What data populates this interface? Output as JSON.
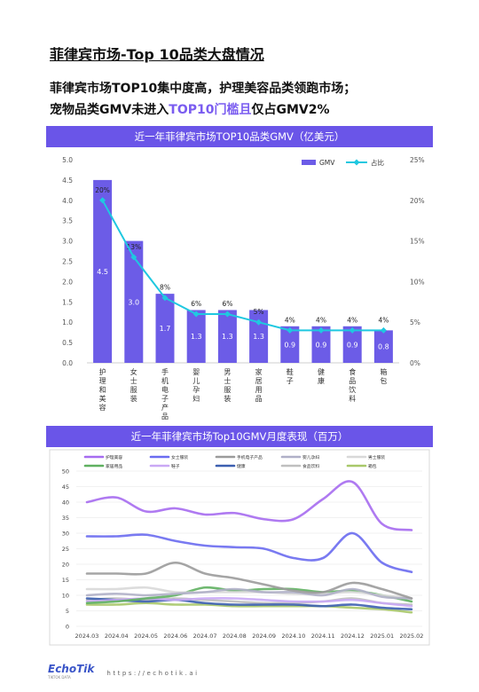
{
  "page": {
    "title": "菲律宾市场-Top 10品类大盘情况",
    "subtitle_line1": "菲律宾市场TOP10集中度高，护理美容品类领跑市场；",
    "subtitle_line2_a": "宠物品类GMV未进入",
    "subtitle_line2_b": "TOP10门槛且",
    "subtitle_line2_c": "仅占GMV2%"
  },
  "colors": {
    "accent": "#6a55e8",
    "bar": "#6c5ce7",
    "line": "#1fc8e0"
  },
  "chart_data": [
    {
      "type": "bar",
      "title": "近一年菲律宾市场TOP10品类GMV（亿美元）",
      "categories": [
        "护理和美容",
        "女士服装",
        "手机电子产品",
        "婴儿孕妇",
        "男士服装",
        "家居用品",
        "鞋子",
        "健康",
        "食品饮料",
        "箱包"
      ],
      "series": [
        {
          "name": "GMV",
          "axis": "left",
          "values": [
            4.5,
            3.0,
            1.7,
            1.3,
            1.3,
            1.3,
            0.9,
            0.9,
            0.9,
            0.8
          ],
          "labels": [
            "4.5",
            "3.0",
            "1.7",
            "1.3",
            "1.3",
            "1.3",
            "0.9",
            "0.9",
            "0.9",
            "0.8"
          ]
        },
        {
          "name": "占比",
          "axis": "right",
          "type": "line",
          "values": [
            20,
            13,
            8,
            6,
            6,
            5,
            4,
            4,
            4,
            4
          ],
          "labels": [
            "20%",
            "13%",
            "8%",
            "6%",
            "6%",
            "5%",
            "4%",
            "4%",
            "4%",
            "4%"
          ]
        }
      ],
      "ylim": [
        0,
        5
      ],
      "y_ticks": [
        "0.0",
        "0.5",
        "1.0",
        "1.5",
        "2.0",
        "2.5",
        "3.0",
        "3.5",
        "4.0",
        "4.5",
        "5.0"
      ],
      "y2lim": [
        0,
        25
      ],
      "y2_ticks": [
        "0%",
        "5%",
        "10%",
        "15%",
        "20%",
        "25%"
      ],
      "legend": "top-right",
      "grid": false
    },
    {
      "type": "line",
      "title": "近一年菲律宾市场Top10GMV月度表现（百万）",
      "x": [
        "2024.03",
        "2024.04",
        "2024.05",
        "2024.06",
        "2024.07",
        "2024.08",
        "2024.09",
        "2024.10",
        "2024.11",
        "2024.12",
        "2025.01",
        "2025.02"
      ],
      "ylim": [
        0,
        50
      ],
      "y_ticks": [
        "0",
        "5",
        "10",
        "15",
        "20",
        "25",
        "30",
        "35",
        "40",
        "45",
        "50"
      ],
      "legend": "top",
      "grid": true,
      "series": [
        {
          "name": "护理美容",
          "color": "#a66cf0",
          "values": [
            40,
            41.5,
            37,
            38,
            36,
            36.5,
            34.5,
            34.5,
            41,
            46.5,
            33,
            31
          ]
        },
        {
          "name": "女士服装",
          "color": "#6a6cf0",
          "values": [
            29,
            29,
            29.5,
            27.5,
            26,
            25.5,
            25,
            22,
            22,
            30,
            20.5,
            17.5
          ]
        },
        {
          "name": "手机电子产品",
          "color": "#9b9b9b",
          "values": [
            17,
            17,
            17,
            20.5,
            17,
            15.5,
            13.5,
            11.5,
            11,
            14,
            12,
            9
          ]
        },
        {
          "name": "婴儿孕妇",
          "color": "#b0b0c8",
          "values": [
            10,
            10.5,
            10,
            10.5,
            11,
            12,
            11,
            11,
            10,
            12,
            9.5,
            9
          ]
        },
        {
          "name": "男士服装",
          "color": "#d8d8d8",
          "values": [
            12,
            12,
            12.5,
            11,
            11,
            11,
            11,
            10.5,
            10.5,
            11,
            10,
            9
          ]
        },
        {
          "name": "家居用品",
          "color": "#5fb060",
          "values": [
            7.5,
            8,
            9,
            10,
            12.5,
            11.5,
            12,
            12,
            11,
            11.5,
            10,
            8
          ]
        },
        {
          "name": "鞋子",
          "color": "#c9a8f5",
          "values": [
            8,
            8.5,
            9,
            8.5,
            9,
            9,
            8.5,
            8,
            8,
            8.5,
            7.5,
            6.5
          ]
        },
        {
          "name": "健康",
          "color": "#3c5fb0",
          "values": [
            9,
            8.5,
            8,
            8.5,
            7.5,
            7,
            7,
            7,
            6.5,
            7,
            6,
            5.5
          ]
        },
        {
          "name": "食品饮料",
          "color": "#bfbfbf",
          "values": [
            8.5,
            9,
            8.5,
            9,
            8.5,
            8,
            7.5,
            7.5,
            8,
            9,
            7.5,
            7
          ]
        },
        {
          "name": "箱包",
          "color": "#a8c86a",
          "values": [
            7,
            7,
            7.5,
            7,
            7,
            6.5,
            6.5,
            6.5,
            6.5,
            6,
            5.5,
            4.5
          ]
        }
      ]
    }
  ],
  "footer": {
    "logo": "EchoTik",
    "logo_sub": "TIKTOK DATA",
    "url": "https://echotik.ai"
  }
}
